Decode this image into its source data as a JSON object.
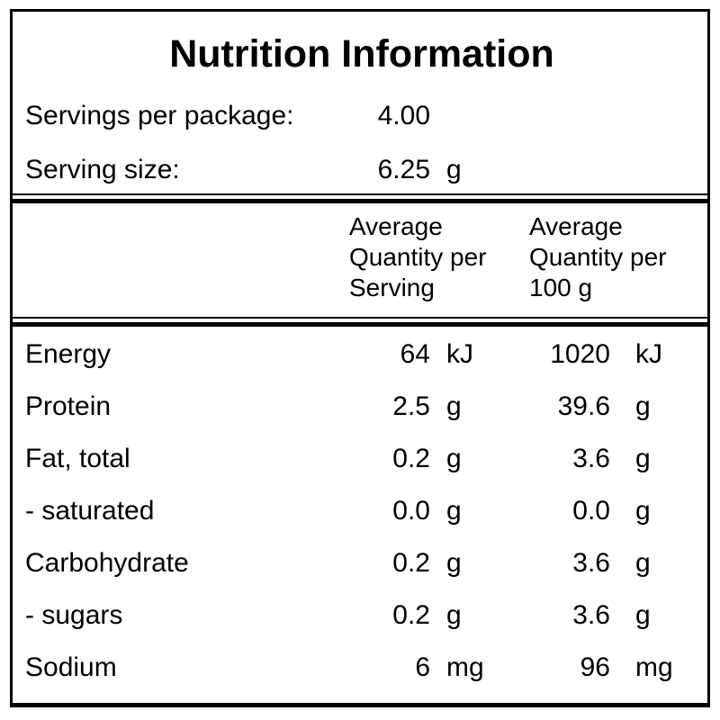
{
  "title": "Nutrition Information",
  "serving_info": {
    "rows": [
      {
        "label": "Servings per package:",
        "value": "4.00",
        "unit": ""
      },
      {
        "label": "Serving size:",
        "value": "6.25",
        "unit": "g"
      }
    ]
  },
  "table": {
    "column_headers": [
      "Average Quantity per Serving",
      "Average Quantity per 100 g"
    ],
    "rows": [
      {
        "nutrient": "Energy",
        "per_serving": "64",
        "per_serving_unit": "kJ",
        "per_100g": "1020",
        "per_100g_unit": "kJ"
      },
      {
        "nutrient": "Protein",
        "per_serving": "2.5",
        "per_serving_unit": "g",
        "per_100g": "39.6",
        "per_100g_unit": "g"
      },
      {
        "nutrient": "Fat, total",
        "per_serving": "0.2",
        "per_serving_unit": "g",
        "per_100g": "3.6",
        "per_100g_unit": "g"
      },
      {
        "nutrient": "- saturated",
        "per_serving": "0.0",
        "per_serving_unit": "g",
        "per_100g": "0.0",
        "per_100g_unit": "g"
      },
      {
        "nutrient": "Carbohydrate",
        "per_serving": "0.2",
        "per_serving_unit": "g",
        "per_100g": "3.6",
        "per_100g_unit": "g"
      },
      {
        "nutrient": "- sugars",
        "per_serving": "0.2",
        "per_serving_unit": "g",
        "per_100g": "3.6",
        "per_100g_unit": "g"
      },
      {
        "nutrient": "Sodium",
        "per_serving": "6",
        "per_serving_unit": "mg",
        "per_100g": "96",
        "per_100g_unit": "mg"
      }
    ]
  },
  "colors": {
    "border": "#000000",
    "text": "#000000",
    "background": "#ffffff"
  }
}
